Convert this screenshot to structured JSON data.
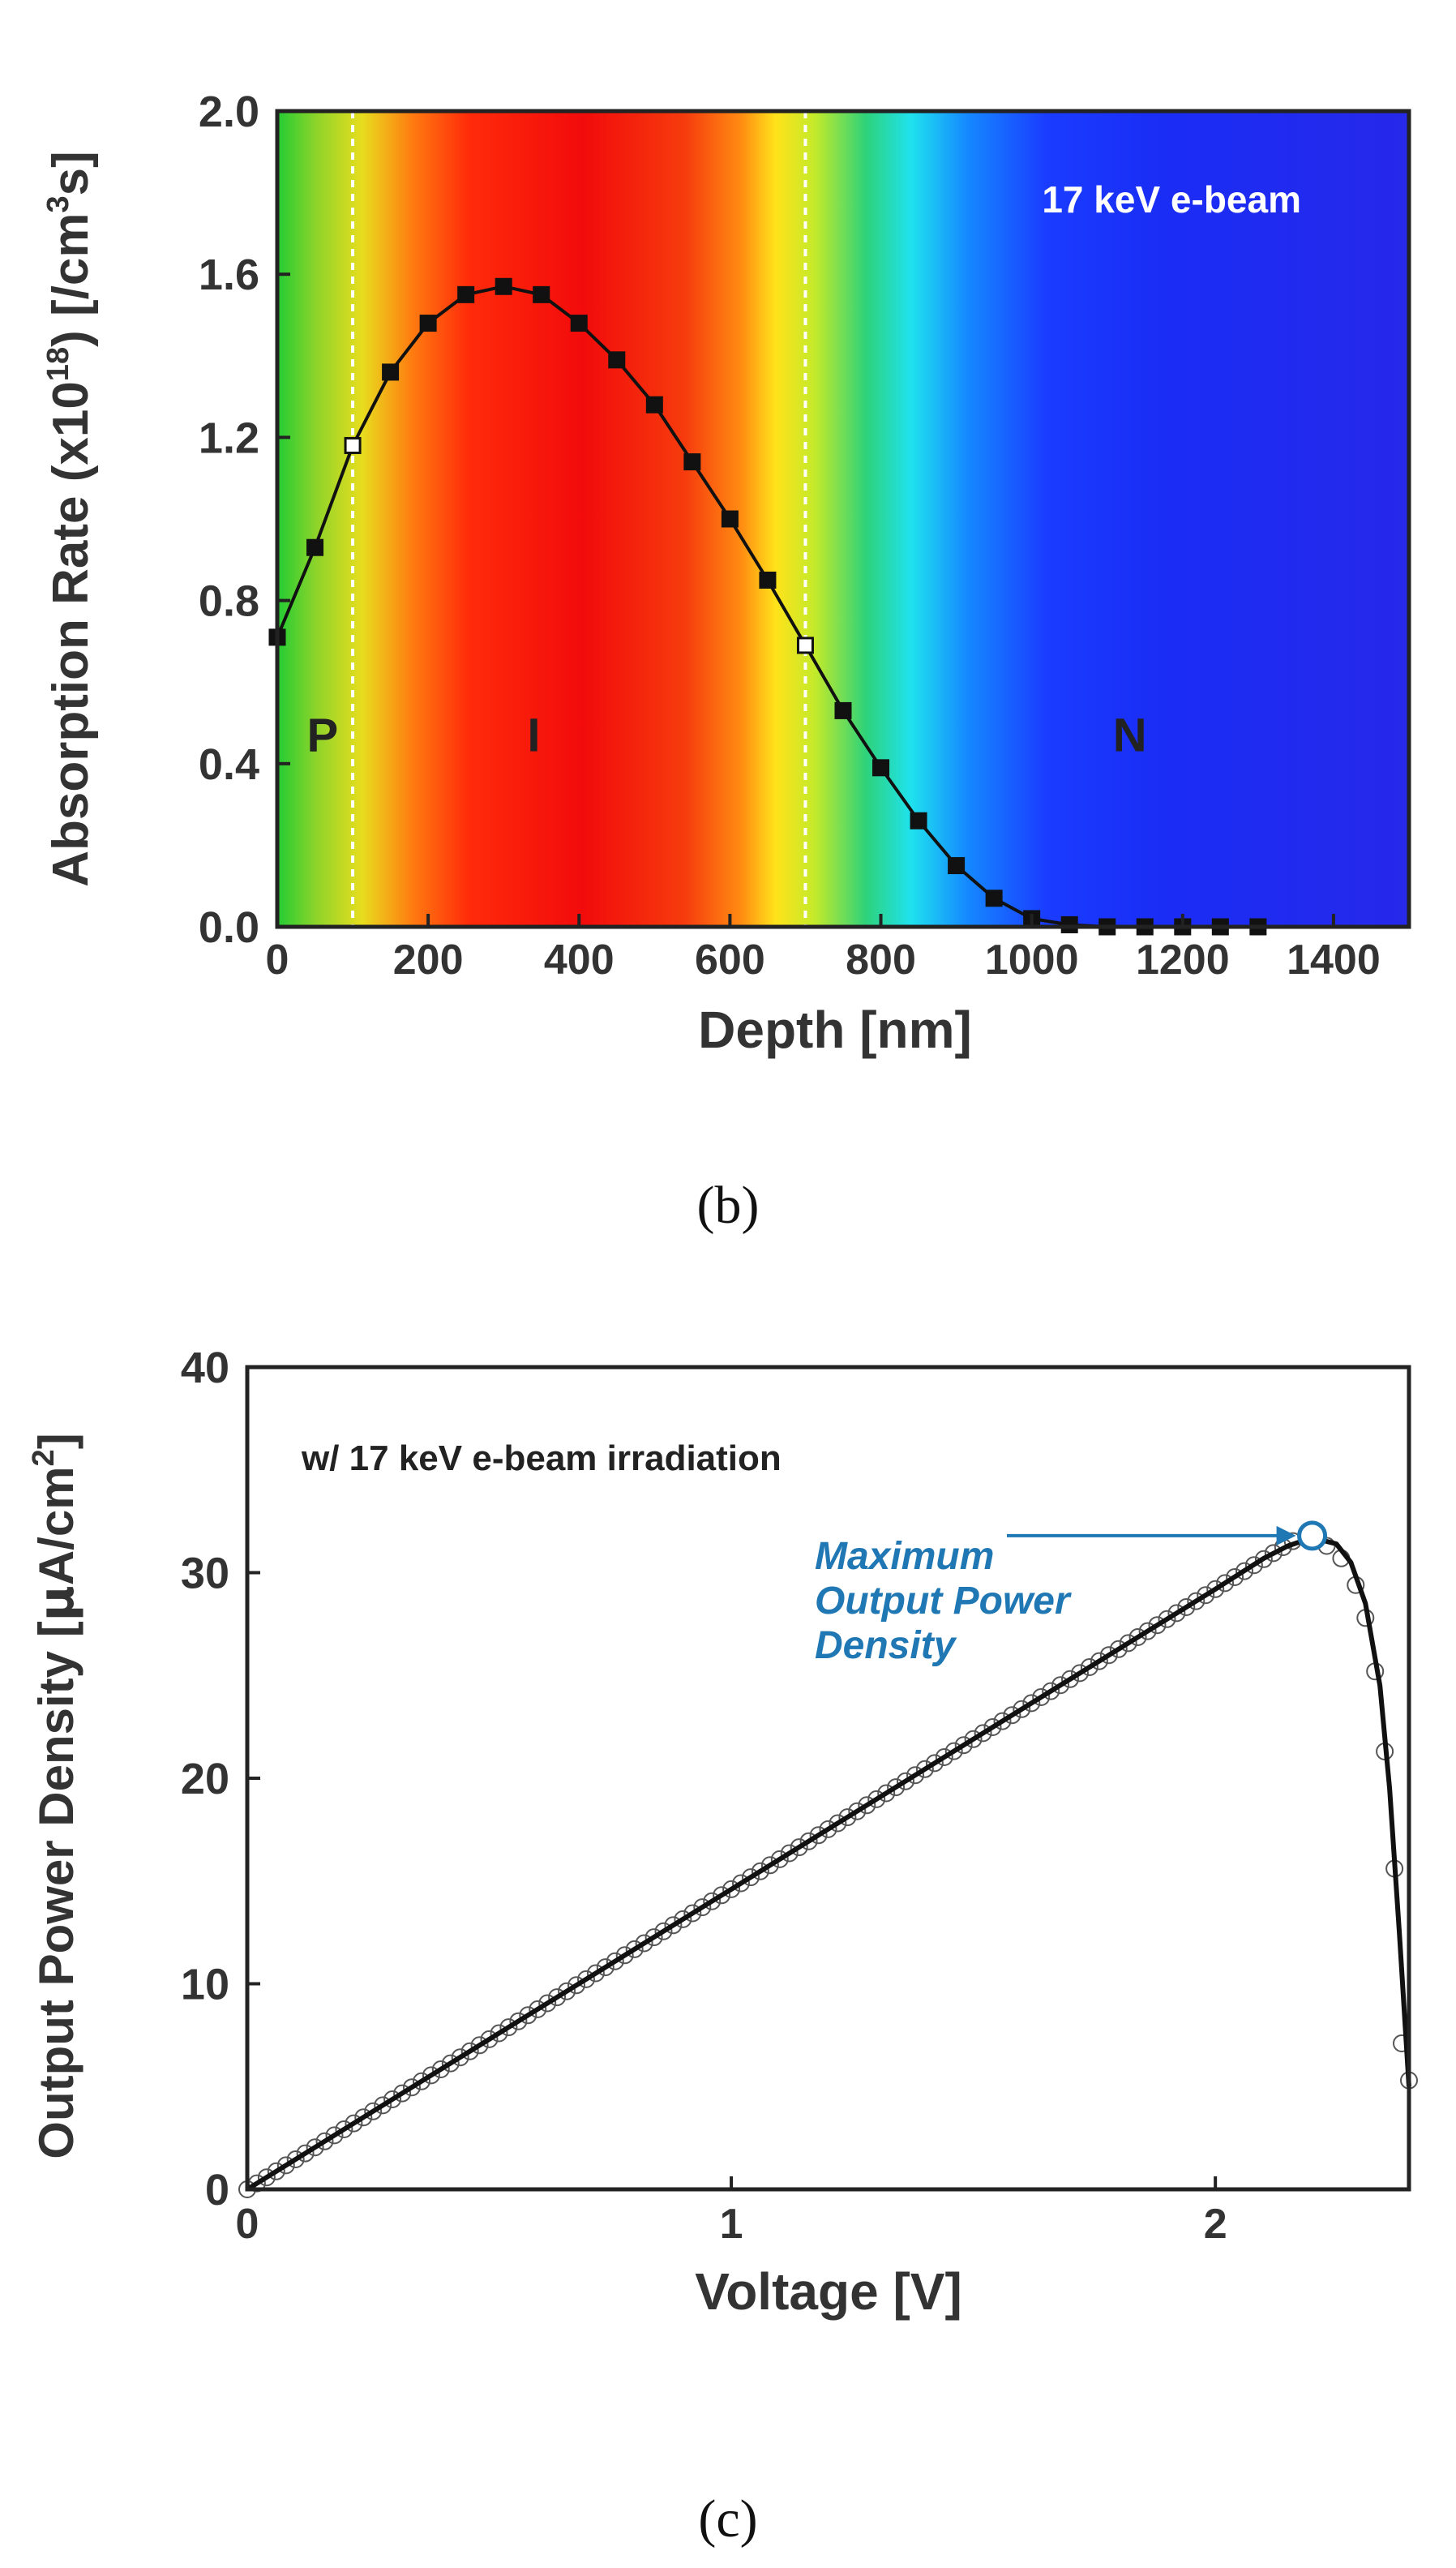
{
  "chart_data": [
    {
      "type": "line",
      "panel_label": "(b)",
      "title": "",
      "xlabel": "Depth [nm]",
      "ylabel_parts": [
        "Absorption Rate (x10",
        "18",
        ") [/cm",
        "3",
        "s]"
      ],
      "xlim": [
        0,
        1500
      ],
      "ylim": [
        0,
        2.0
      ],
      "xticks": [
        0,
        200,
        400,
        600,
        800,
        1000,
        1200,
        1400
      ],
      "yticks": [
        0.0,
        0.4,
        0.8,
        1.2,
        1.6,
        2.0
      ],
      "ytick_labels": [
        "0.0",
        "0.4",
        "0.8",
        "1.2",
        "1.6",
        "2.0"
      ],
      "series": [
        {
          "name": "absorption",
          "marker": "square",
          "x": [
            0,
            50,
            100,
            150,
            200,
            250,
            300,
            350,
            400,
            450,
            500,
            550,
            600,
            650,
            700,
            750,
            800,
            850,
            900,
            950,
            1000,
            1050,
            1100,
            1150,
            1200,
            1250,
            1300
          ],
          "y": [
            0.71,
            0.93,
            1.18,
            1.36,
            1.48,
            1.55,
            1.57,
            1.55,
            1.48,
            1.39,
            1.28,
            1.14,
            1.0,
            0.85,
            0.69,
            0.53,
            0.39,
            0.26,
            0.15,
            0.07,
            0.02,
            0.005,
            0.0,
            0.0,
            0.0,
            0.0,
            0.0
          ]
        }
      ],
      "region_boundaries": [
        100,
        700
      ],
      "region_labels": [
        {
          "text": "P",
          "x": 60,
          "y": 0.47
        },
        {
          "text": "I",
          "x": 340,
          "y": 0.47
        },
        {
          "text": "N",
          "x": 1130,
          "y": 0.47
        }
      ],
      "annotation": "17 keV e-beam",
      "background": "depth-dependent color gradient (green-yellow-red-yellow-green-cyan-blue)",
      "grid": false
    },
    {
      "type": "line",
      "panel_label": "(c)",
      "title": "",
      "xlabel": "Voltage [V]",
      "ylabel_parts": [
        "Output Power Density [",
        "μ",
        "A/cm",
        "2",
        "]"
      ],
      "xlim": [
        0,
        2.4
      ],
      "ylim": [
        0,
        40
      ],
      "xticks": [
        0,
        1,
        2
      ],
      "yticks": [
        0,
        10,
        20,
        30,
        40
      ],
      "series": [
        {
          "name": "measured",
          "marker": "open-circle",
          "x_start": 0.0,
          "x_end": 2.17,
          "x_step": 0.02,
          "slope": 14.6,
          "x_knee": [
            2.2,
            2.23,
            2.26,
            2.29,
            2.31,
            2.33,
            2.35,
            2.37,
            2.385,
            2.4
          ],
          "y_knee": [
            31.9,
            31.3,
            30.7,
            29.4,
            27.8,
            25.2,
            21.3,
            15.6,
            7.1,
            5.3
          ]
        },
        {
          "name": "fit",
          "style": "solid-line",
          "x": [
            0,
            0.5,
            1.0,
            1.5,
            2.0,
            2.1,
            2.15,
            2.2,
            2.25,
            2.28,
            2.31,
            2.34,
            2.36,
            2.38,
            2.4
          ],
          "y": [
            0,
            7.3,
            14.6,
            21.9,
            29.2,
            30.7,
            31.3,
            31.7,
            31.4,
            30.5,
            28.5,
            24.5,
            19.5,
            12.5,
            5.0
          ]
        }
      ],
      "max_point": {
        "x": 2.2,
        "y": 31.8
      },
      "annotation_lines": [
        "Maximum",
        "Output Power",
        "Density"
      ],
      "legend_text": "w/ 17 keV e-beam irradiation",
      "colors": {
        "accent": "#1f77b4",
        "line": "#111111",
        "marker": "#555555"
      },
      "grid": false
    }
  ]
}
